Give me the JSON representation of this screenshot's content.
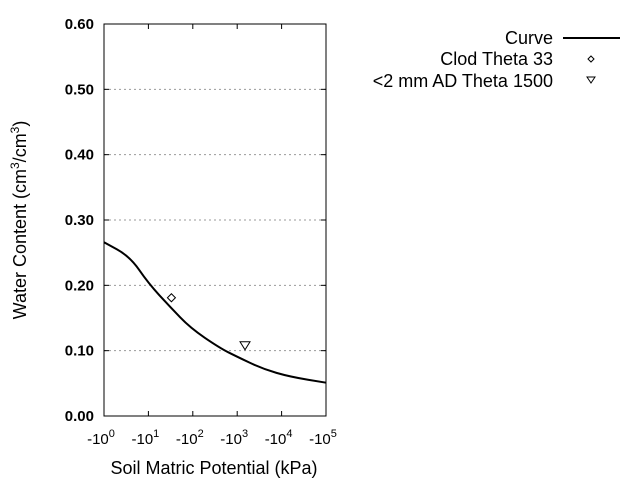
{
  "chart_data": {
    "type": "line",
    "xlabel": "Soil Matric Potential (kPa)",
    "ylabel": "Water Content (cm3/cm3)",
    "ylabel_parts": {
      "a": "Water Content (cm",
      "sup1": "3",
      "b": "/cm",
      "sup2": "3",
      "c": ")"
    },
    "x_scale": "log",
    "xlim": [
      -1,
      -100000
    ],
    "ylim": [
      0,
      0.6
    ],
    "x_ticks": [
      {
        "value": -1,
        "base": "-10",
        "exp": "0"
      },
      {
        "value": -10,
        "base": "-10",
        "exp": "1"
      },
      {
        "value": -100,
        "base": "-10",
        "exp": "2"
      },
      {
        "value": -1000,
        "base": "-10",
        "exp": "3"
      },
      {
        "value": -10000,
        "base": "-10",
        "exp": "4"
      },
      {
        "value": -100000,
        "base": "-10",
        "exp": "5"
      }
    ],
    "y_ticks": [
      {
        "value": 0,
        "label": "0.00"
      },
      {
        "value": 0.1,
        "label": "0.10"
      },
      {
        "value": 0.2,
        "label": "0.20"
      },
      {
        "value": 0.3,
        "label": "0.30"
      },
      {
        "value": 0.4,
        "label": "0.40"
      },
      {
        "value": 0.5,
        "label": "0.50"
      },
      {
        "value": 0.6,
        "label": "0.60"
      }
    ],
    "grid": "horizontal dotted",
    "legend_placement": "outside-top-right",
    "series": [
      {
        "name": "Curve",
        "style": "line",
        "color": "#000000",
        "x": [
          -1,
          -3.85,
          -10,
          -31,
          -87,
          -407,
          -977,
          -3800,
          -15500,
          -100000
        ],
        "y": [
          0.266,
          0.244,
          0.203,
          0.167,
          0.135,
          0.104,
          0.091,
          0.072,
          0.06,
          0.051
        ]
      },
      {
        "name": "Clod Theta 33",
        "style": "diamond",
        "color": "#000000",
        "x": [
          -33
        ],
        "y": [
          0.181
        ]
      },
      {
        "name": "<2 mm AD Theta 1500",
        "style": "triangle-down",
        "color": "#000000",
        "x": [
          -1500
        ],
        "y": [
          0.109
        ]
      }
    ]
  }
}
